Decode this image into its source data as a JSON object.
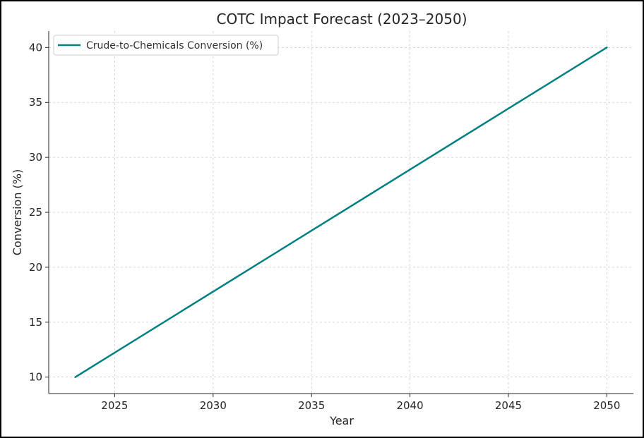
{
  "chart_data": {
    "type": "line",
    "title": "COTC Impact Forecast (2023–2050)",
    "xlabel": "Year",
    "ylabel": "Conversion (%)",
    "xlim": [
      2021.65,
      2051.35
    ],
    "ylim": [
      8.5,
      41.5
    ],
    "x_ticks": [
      2025,
      2030,
      2035,
      2040,
      2045,
      2050
    ],
    "y_ticks": [
      10,
      15,
      20,
      25,
      30,
      35,
      40
    ],
    "grid": true,
    "legend_position": "top-left",
    "series": [
      {
        "name": "Crude-to-Chemicals Conversion (%)",
        "color": "#008080",
        "x": [
          2023,
          2050
        ],
        "y": [
          10,
          40
        ]
      }
    ]
  }
}
